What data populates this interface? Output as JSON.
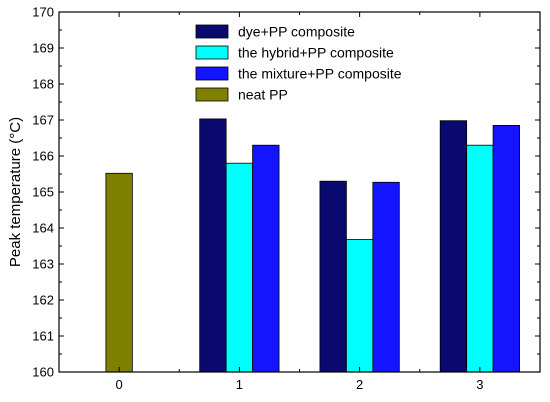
{
  "chart_data": {
    "type": "bar",
    "title": "",
    "xlabel": "",
    "ylabel": "Peak temperature (°C)",
    "ylim": [
      160,
      170
    ],
    "yticks": [
      160,
      161,
      162,
      163,
      164,
      165,
      166,
      167,
      168,
      169,
      170
    ],
    "xlim": [
      -0.5,
      3.5
    ],
    "xticks": [
      0,
      1,
      2,
      3
    ],
    "grid": false,
    "legend_position": "top-center",
    "bar_width": 0.22,
    "series": [
      {
        "name": "dye+PP composite",
        "color": "#0a0a6e",
        "points": [
          {
            "x": 1,
            "y": 167.03
          },
          {
            "x": 2,
            "y": 165.3
          },
          {
            "x": 3,
            "y": 166.98
          }
        ]
      },
      {
        "name": "the hybrid+PP composite",
        "color": "#00ffff",
        "points": [
          {
            "x": 1,
            "y": 165.8
          },
          {
            "x": 2,
            "y": 163.68
          },
          {
            "x": 3,
            "y": 166.3
          }
        ]
      },
      {
        "name": "the mixture+PP composite",
        "color": "#1414ff",
        "points": [
          {
            "x": 1,
            "y": 166.3
          },
          {
            "x": 2,
            "y": 165.27
          },
          {
            "x": 3,
            "y": 166.85
          }
        ]
      },
      {
        "name": "neat PP",
        "color": "#808000",
        "points": [
          {
            "x": 0,
            "y": 165.52
          }
        ]
      }
    ]
  }
}
